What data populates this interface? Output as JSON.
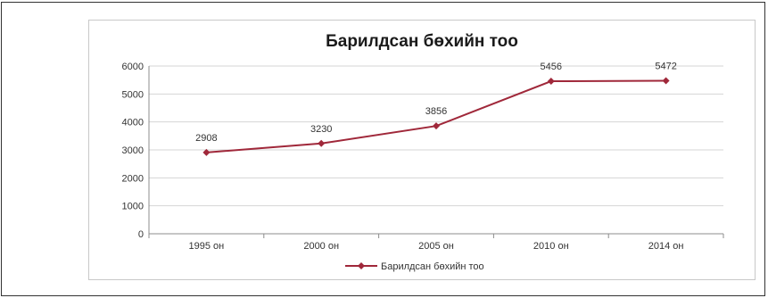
{
  "chart_data": {
    "type": "line",
    "title": "Барилдсан бөхийн тоо",
    "xlabel": "",
    "ylabel": "",
    "categories": [
      "1995 он",
      "2000 он",
      "2005 он",
      "2010 он",
      "2014 он"
    ],
    "series": [
      {
        "name": "Барилдсан бөхийн тоо",
        "values": [
          2908,
          3230,
          3856,
          5456,
          5472
        ],
        "color": "#a0283a"
      }
    ],
    "ylim": [
      0,
      6000
    ],
    "yticks": [
      "0",
      "1000",
      "2000",
      "3000",
      "4000",
      "5000",
      "6000"
    ],
    "grid": true,
    "legend": "bottom",
    "colors": {
      "line": "#a0283a",
      "grid": "#d4d4d4",
      "axis": "#8c8c8c"
    }
  }
}
